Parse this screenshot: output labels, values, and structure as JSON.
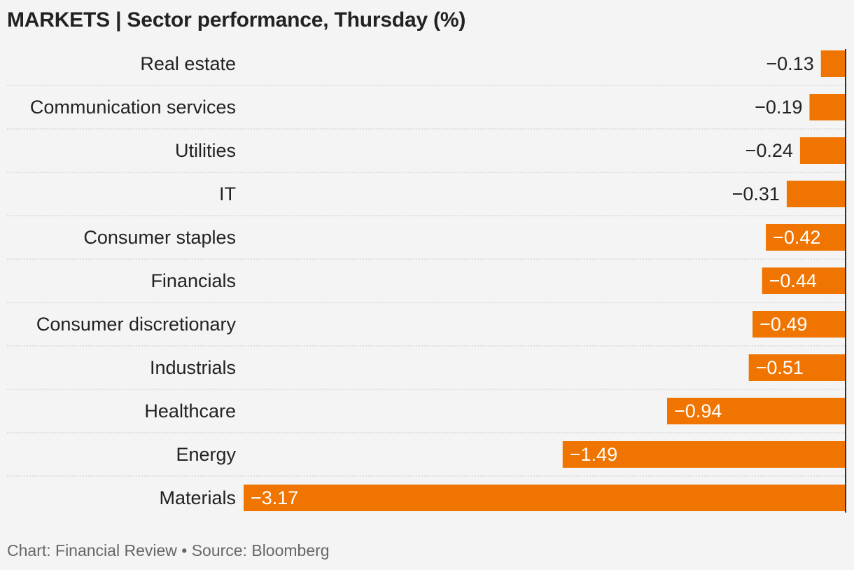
{
  "title": "MARKETS | Sector performance, Thursday (%)",
  "source": "Chart: Financial Review • Source: Bloomberg",
  "colors": {
    "bar": "#f07400",
    "axis": "#333333",
    "separator": "#c8c8c8",
    "label_inside": "#ffffff",
    "label_outside": "#222222"
  },
  "chart_data": {
    "type": "bar",
    "orientation": "horizontal",
    "title": "MARKETS | Sector performance, Thursday (%)",
    "categories": [
      "Real estate",
      "Communication services",
      "Utilities",
      "IT",
      "Consumer staples",
      "Financials",
      "Consumer discretionary",
      "Industrials",
      "Healthcare",
      "Energy",
      "Materials"
    ],
    "values": [
      -0.13,
      -0.19,
      -0.24,
      -0.31,
      -0.42,
      -0.44,
      -0.49,
      -0.51,
      -0.94,
      -1.49,
      -3.17
    ],
    "value_labels": [
      "−0.13",
      "−0.19",
      "−0.24",
      "−0.31",
      "−0.42",
      "−0.44",
      "−0.49",
      "−0.51",
      "−0.94",
      "−1.49",
      "−3.17"
    ],
    "xlim": [
      -3.17,
      0
    ],
    "grid": false
  }
}
